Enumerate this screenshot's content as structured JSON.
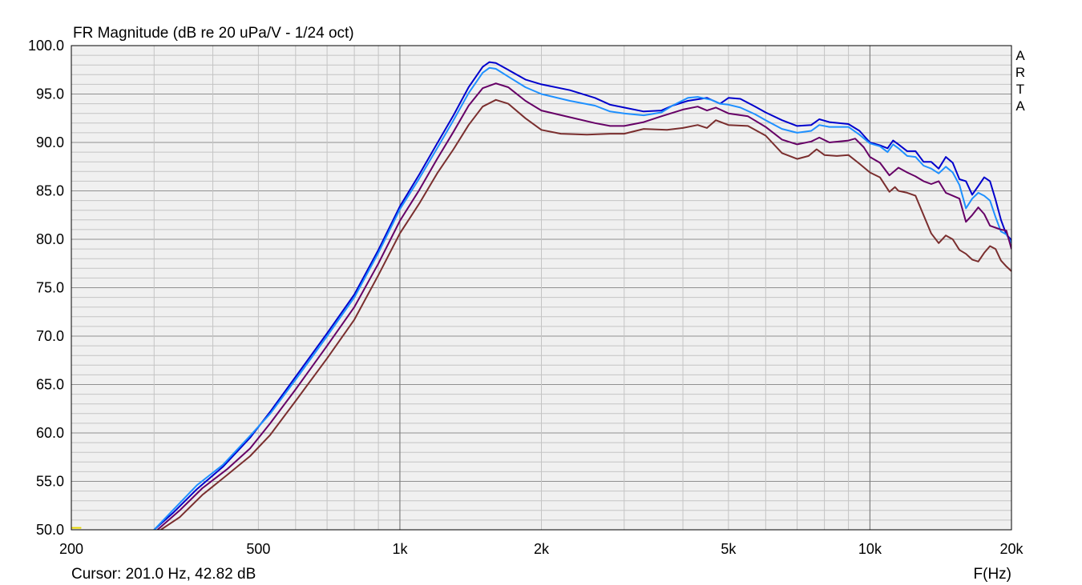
{
  "chart_data": {
    "type": "line",
    "title": "FR Magnitude (dB re 20 uPa/V - 1/24 oct)",
    "xlabel": "F(Hz)",
    "ylabel": "",
    "x_scale": "log",
    "xlim": [
      200,
      20000
    ],
    "ylim": [
      50,
      100
    ],
    "grid": true,
    "brand": "ARTA",
    "cursor_text": "Cursor: 201.0 Hz, 42.82 dB",
    "x_ticks": [
      {
        "value": 200,
        "label": "200"
      },
      {
        "value": 500,
        "label": "500"
      },
      {
        "value": 1000,
        "label": "1k"
      },
      {
        "value": 2000,
        "label": "2k"
      },
      {
        "value": 5000,
        "label": "5k"
      },
      {
        "value": 10000,
        "label": "10k"
      },
      {
        "value": 20000,
        "label": "20k"
      }
    ],
    "y_ticks": [
      {
        "value": 100,
        "label": "100.0"
      },
      {
        "value": 95,
        "label": "95.0"
      },
      {
        "value": 90,
        "label": "90.0"
      },
      {
        "value": 85,
        "label": "85.0"
      },
      {
        "value": 80,
        "label": "80.0"
      },
      {
        "value": 75,
        "label": "75.0"
      },
      {
        "value": 70,
        "label": "70.0"
      },
      {
        "value": 65,
        "label": "65.0"
      },
      {
        "value": 60,
        "label": "60.0"
      },
      {
        "value": 55,
        "label": "55.0"
      },
      {
        "value": 50,
        "label": "50.0"
      }
    ],
    "series": [
      {
        "color": "#0000cc",
        "points": [
          [
            300,
            50
          ],
          [
            330,
            51.8
          ],
          [
            370,
            54.2
          ],
          [
            420,
            56.5
          ],
          [
            480,
            59.5
          ],
          [
            530,
            62.2
          ],
          [
            600,
            65.8
          ],
          [
            700,
            70.3
          ],
          [
            800,
            74.3
          ],
          [
            900,
            78.9
          ],
          [
            1000,
            83.4
          ],
          [
            1100,
            86.7
          ],
          [
            1200,
            89.9
          ],
          [
            1300,
            92.8
          ],
          [
            1400,
            95.7
          ],
          [
            1500,
            97.8
          ],
          [
            1550,
            98.3
          ],
          [
            1600,
            98.2
          ],
          [
            1700,
            97.5
          ],
          [
            1850,
            96.5
          ],
          [
            2000,
            96.0
          ],
          [
            2300,
            95.4
          ],
          [
            2600,
            94.6
          ],
          [
            2800,
            93.9
          ],
          [
            3000,
            93.6
          ],
          [
            3300,
            93.2
          ],
          [
            3600,
            93.3
          ],
          [
            3800,
            93.8
          ],
          [
            4100,
            94.3
          ],
          [
            4500,
            94.6
          ],
          [
            4800,
            94.0
          ],
          [
            5000,
            94.6
          ],
          [
            5300,
            94.5
          ],
          [
            5700,
            93.7
          ],
          [
            6000,
            93.1
          ],
          [
            6500,
            92.3
          ],
          [
            7000,
            91.7
          ],
          [
            7500,
            91.8
          ],
          [
            7800,
            92.4
          ],
          [
            8200,
            92.1
          ],
          [
            9000,
            91.9
          ],
          [
            9500,
            91.2
          ],
          [
            10000,
            90.0
          ],
          [
            10500,
            89.7
          ],
          [
            10900,
            89.4
          ],
          [
            11200,
            90.2
          ],
          [
            11500,
            89.8
          ],
          [
            12000,
            89.1
          ],
          [
            12500,
            89.1
          ],
          [
            13000,
            88.0
          ],
          [
            13500,
            88.0
          ],
          [
            14000,
            87.3
          ],
          [
            14500,
            88.5
          ],
          [
            15000,
            87.9
          ],
          [
            15500,
            86.2
          ],
          [
            16000,
            86.0
          ],
          [
            16500,
            84.6
          ],
          [
            17000,
            85.5
          ],
          [
            17500,
            86.4
          ],
          [
            18000,
            86.0
          ],
          [
            18500,
            84.1
          ],
          [
            19000,
            82.0
          ],
          [
            19500,
            80.5
          ],
          [
            20000,
            79.9
          ]
        ]
      },
      {
        "color": "#1e90ff",
        "points": [
          [
            300,
            50
          ],
          [
            330,
            52.1
          ],
          [
            370,
            54.6
          ],
          [
            420,
            56.7
          ],
          [
            480,
            59.7
          ],
          [
            530,
            62.0
          ],
          [
            600,
            65.5
          ],
          [
            700,
            70.0
          ],
          [
            800,
            74.0
          ],
          [
            900,
            78.6
          ],
          [
            1000,
            83.1
          ],
          [
            1100,
            86.3
          ],
          [
            1200,
            89.4
          ],
          [
            1300,
            92.3
          ],
          [
            1400,
            95.1
          ],
          [
            1500,
            97.2
          ],
          [
            1550,
            97.7
          ],
          [
            1600,
            97.6
          ],
          [
            1700,
            96.8
          ],
          [
            1850,
            95.7
          ],
          [
            2000,
            95.0
          ],
          [
            2300,
            94.3
          ],
          [
            2600,
            93.8
          ],
          [
            2800,
            93.2
          ],
          [
            3000,
            93.0
          ],
          [
            3300,
            92.8
          ],
          [
            3600,
            93.1
          ],
          [
            3800,
            93.8
          ],
          [
            4100,
            94.6
          ],
          [
            4300,
            94.7
          ],
          [
            4600,
            94.4
          ],
          [
            4800,
            94.0
          ],
          [
            5000,
            93.9
          ],
          [
            5300,
            93.6
          ],
          [
            5700,
            92.9
          ],
          [
            6000,
            92.3
          ],
          [
            6500,
            91.4
          ],
          [
            7000,
            91.0
          ],
          [
            7500,
            91.2
          ],
          [
            7800,
            91.8
          ],
          [
            8200,
            91.6
          ],
          [
            9000,
            91.6
          ],
          [
            9500,
            90.8
          ],
          [
            10000,
            89.9
          ],
          [
            10500,
            89.6
          ],
          [
            10900,
            89.0
          ],
          [
            11200,
            89.8
          ],
          [
            11500,
            89.4
          ],
          [
            12000,
            88.6
          ],
          [
            12500,
            88.5
          ],
          [
            13000,
            87.6
          ],
          [
            13500,
            87.3
          ],
          [
            14000,
            86.8
          ],
          [
            14500,
            87.5
          ],
          [
            15000,
            86.9
          ],
          [
            15500,
            85.6
          ],
          [
            16000,
            83.2
          ],
          [
            16500,
            84.2
          ],
          [
            17000,
            84.8
          ],
          [
            17500,
            84.5
          ],
          [
            18000,
            84.0
          ],
          [
            18500,
            82.3
          ],
          [
            19000,
            80.8
          ],
          [
            19500,
            80.5
          ],
          [
            20000,
            79.6
          ]
        ]
      },
      {
        "color": "#660066",
        "points": [
          [
            305,
            50
          ],
          [
            340,
            52.0
          ],
          [
            380,
            54.3
          ],
          [
            430,
            56.3
          ],
          [
            480,
            58.4
          ],
          [
            530,
            61.0
          ],
          [
            600,
            64.5
          ],
          [
            700,
            69.0
          ],
          [
            800,
            73.0
          ],
          [
            900,
            77.5
          ],
          [
            1000,
            81.9
          ],
          [
            1100,
            85.1
          ],
          [
            1200,
            88.3
          ],
          [
            1300,
            91.1
          ],
          [
            1400,
            93.8
          ],
          [
            1500,
            95.6
          ],
          [
            1600,
            96.1
          ],
          [
            1700,
            95.7
          ],
          [
            1850,
            94.3
          ],
          [
            2000,
            93.3
          ],
          [
            2300,
            92.6
          ],
          [
            2600,
            92.0
          ],
          [
            2800,
            91.7
          ],
          [
            3000,
            91.7
          ],
          [
            3300,
            92.1
          ],
          [
            3600,
            92.7
          ],
          [
            4000,
            93.4
          ],
          [
            4300,
            93.7
          ],
          [
            4500,
            93.3
          ],
          [
            4700,
            93.6
          ],
          [
            5000,
            93.0
          ],
          [
            5500,
            92.7
          ],
          [
            6000,
            91.6
          ],
          [
            6500,
            90.3
          ],
          [
            7000,
            89.8
          ],
          [
            7500,
            90.1
          ],
          [
            7800,
            90.5
          ],
          [
            8200,
            90.0
          ],
          [
            9000,
            90.2
          ],
          [
            9300,
            90.4
          ],
          [
            9700,
            89.5
          ],
          [
            10000,
            88.5
          ],
          [
            10500,
            87.9
          ],
          [
            11000,
            86.6
          ],
          [
            11500,
            87.4
          ],
          [
            12000,
            86.9
          ],
          [
            12500,
            86.5
          ],
          [
            13000,
            86.0
          ],
          [
            13500,
            85.7
          ],
          [
            14000,
            86.0
          ],
          [
            14500,
            84.8
          ],
          [
            15000,
            84.5
          ],
          [
            15500,
            84.2
          ],
          [
            16000,
            81.8
          ],
          [
            16500,
            82.5
          ],
          [
            17000,
            83.3
          ],
          [
            17500,
            82.6
          ],
          [
            18000,
            81.4
          ],
          [
            18500,
            81.2
          ],
          [
            19000,
            81.0
          ],
          [
            19500,
            80.9
          ],
          [
            20000,
            79.0
          ]
        ]
      },
      {
        "color": "#7a2e2e",
        "points": [
          [
            310,
            50
          ],
          [
            340,
            51.3
          ],
          [
            380,
            53.6
          ],
          [
            430,
            55.7
          ],
          [
            480,
            57.6
          ],
          [
            530,
            59.8
          ],
          [
            600,
            63.3
          ],
          [
            700,
            67.7
          ],
          [
            800,
            71.7
          ],
          [
            900,
            76.3
          ],
          [
            1000,
            80.6
          ],
          [
            1100,
            83.7
          ],
          [
            1200,
            86.8
          ],
          [
            1300,
            89.3
          ],
          [
            1400,
            91.8
          ],
          [
            1500,
            93.7
          ],
          [
            1600,
            94.4
          ],
          [
            1700,
            94.0
          ],
          [
            1850,
            92.5
          ],
          [
            2000,
            91.3
          ],
          [
            2200,
            90.9
          ],
          [
            2500,
            90.8
          ],
          [
            2800,
            90.9
          ],
          [
            3000,
            90.9
          ],
          [
            3300,
            91.4
          ],
          [
            3700,
            91.3
          ],
          [
            4000,
            91.5
          ],
          [
            4300,
            91.8
          ],
          [
            4500,
            91.5
          ],
          [
            4700,
            92.3
          ],
          [
            5000,
            91.8
          ],
          [
            5500,
            91.7
          ],
          [
            6000,
            90.7
          ],
          [
            6500,
            88.9
          ],
          [
            7000,
            88.3
          ],
          [
            7400,
            88.6
          ],
          [
            7700,
            89.3
          ],
          [
            8000,
            88.7
          ],
          [
            8500,
            88.6
          ],
          [
            9000,
            88.7
          ],
          [
            9500,
            87.8
          ],
          [
            10000,
            86.9
          ],
          [
            10500,
            86.4
          ],
          [
            11000,
            84.9
          ],
          [
            11300,
            85.4
          ],
          [
            11500,
            85.0
          ],
          [
            12000,
            84.8
          ],
          [
            12500,
            84.5
          ],
          [
            13000,
            82.5
          ],
          [
            13500,
            80.6
          ],
          [
            14000,
            79.6
          ],
          [
            14500,
            80.4
          ],
          [
            15000,
            80.0
          ],
          [
            15500,
            78.9
          ],
          [
            16000,
            78.5
          ],
          [
            16500,
            77.9
          ],
          [
            17000,
            77.7
          ],
          [
            17500,
            78.6
          ],
          [
            18000,
            79.3
          ],
          [
            18500,
            79.0
          ],
          [
            19000,
            77.8
          ],
          [
            19500,
            77.2
          ],
          [
            20000,
            76.7
          ]
        ]
      },
      {
        "color": "#e8d800",
        "points": [
          [
            200,
            50.2
          ],
          [
            205,
            50.2
          ],
          [
            210,
            50.2
          ]
        ]
      }
    ]
  }
}
